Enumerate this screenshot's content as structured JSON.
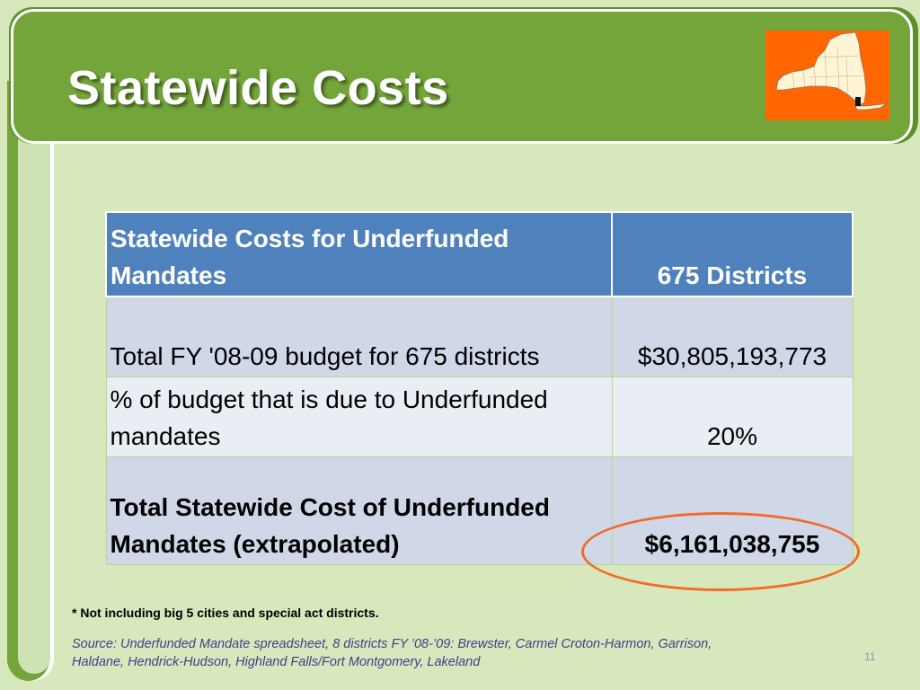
{
  "slide": {
    "title": "Statewide Costs",
    "page_number": "11"
  },
  "map": {
    "icon": "new-york-state-map-icon",
    "background_color": "#ff6600",
    "map_fill": "#fff5d6"
  },
  "table": {
    "header": {
      "label": "Statewide Costs for Underfunded Mandates",
      "value": "675 Districts"
    },
    "rows": [
      {
        "label": "Total FY '08-09 budget for 675 districts",
        "value": "$30,805,193,773"
      },
      {
        "label": "% of budget that is due to Underfunded mandates",
        "value": "20%"
      },
      {
        "label": "Total Statewide Cost of Underfunded Mandates (extrapolated)",
        "value": "$6,161,038,755"
      }
    ]
  },
  "footnote": "* Not including big 5 cities and special act districts.",
  "source": "Source:  Underfunded Mandate spreadsheet, 8 districts FY ’08-’09:  Brewster, Carmel Croton-Harmon, Garrison, Haldane, Hendrick-Hudson, Highland Falls/Fort Montgomery, Lakeland",
  "colors": {
    "theme_green": "#74a53a",
    "background": "#d6e8bc",
    "table_header": "#4f81bd",
    "row_shade": "#d0d8e8",
    "row_light": "#e9edf4",
    "highlight": "#f26b2b"
  }
}
